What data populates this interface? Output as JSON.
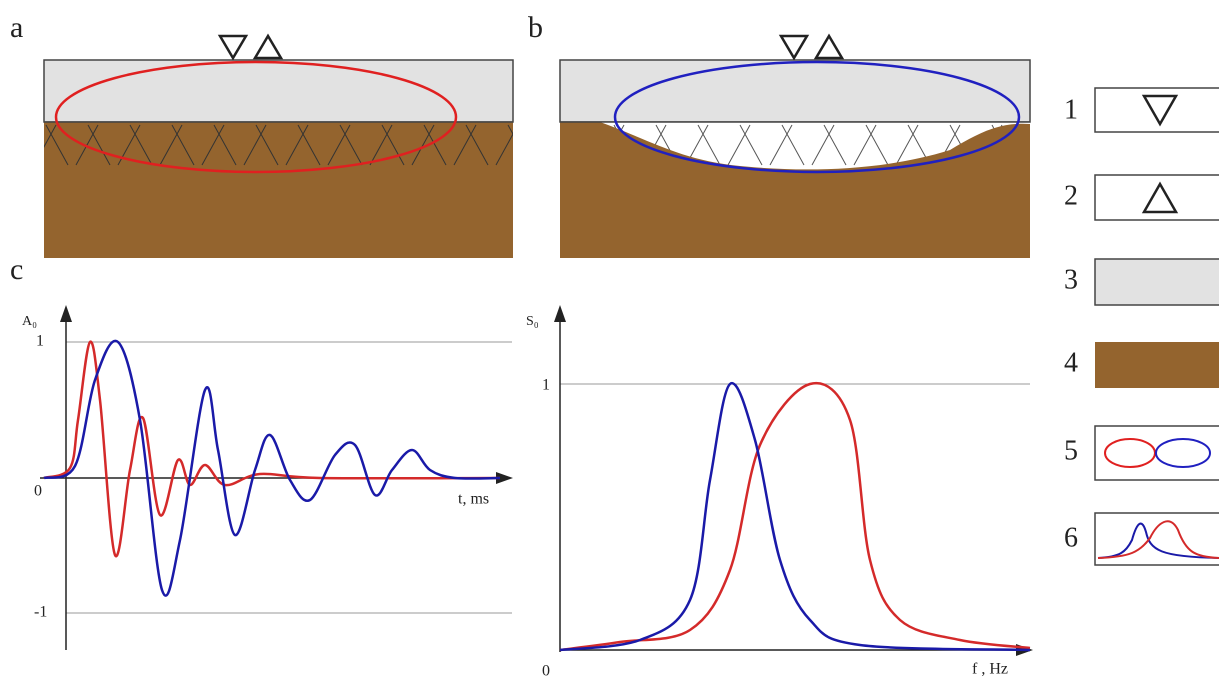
{
  "panels": {
    "a": "a",
    "b": "b",
    "c": "c"
  },
  "time_plot": {
    "y_label": "A₀",
    "x_label": "t, ms",
    "ticks": [
      "1",
      "0",
      "-1"
    ]
  },
  "spectrum_plot": {
    "y_label": "S₀",
    "x_label": "f , Hz",
    "ticks": [
      "1",
      "0"
    ]
  },
  "legend": [
    "1",
    "2",
    "3",
    "4",
    "5",
    "6"
  ]
}
